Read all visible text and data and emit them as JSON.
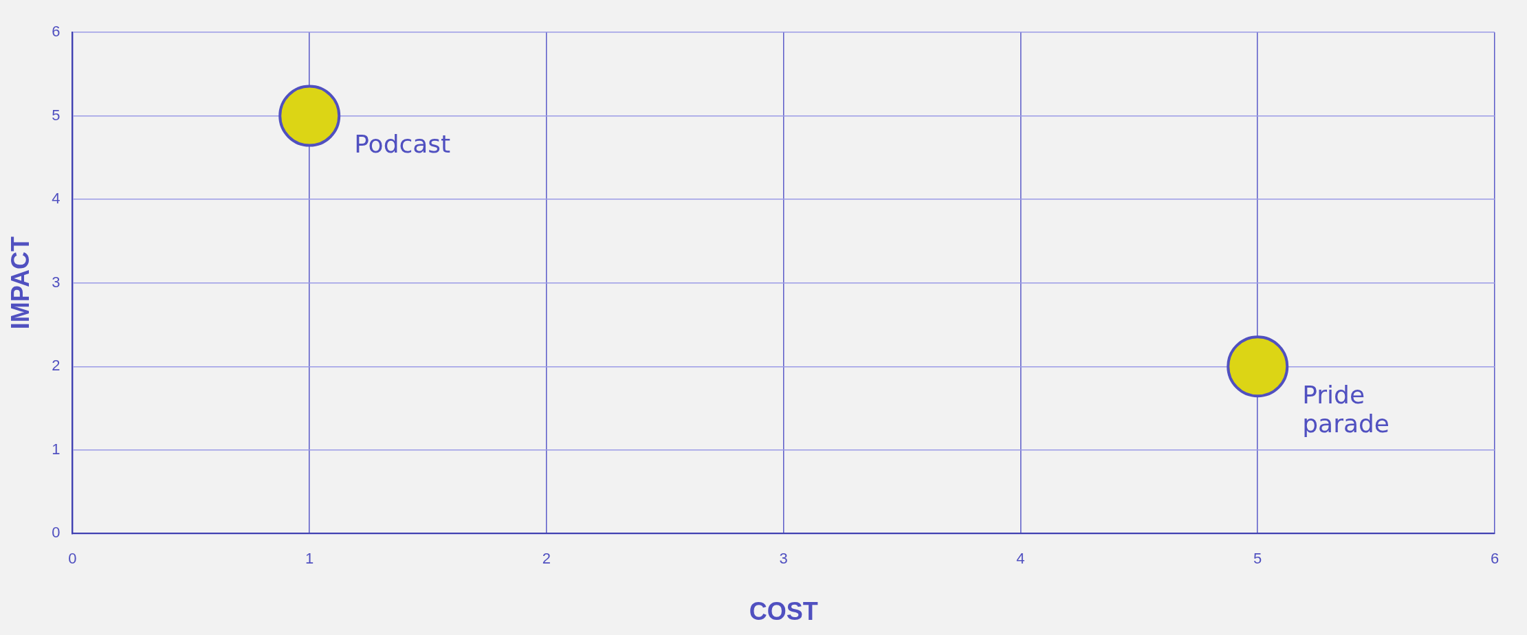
{
  "chart_data": {
    "type": "scatter",
    "xlabel": "COST",
    "ylabel": "IMPACT",
    "x": [
      1,
      5
    ],
    "values": [
      5,
      2
    ],
    "color": "#dcd515",
    "marker": "circle",
    "xlim": [
      0,
      6
    ],
    "ylim": [
      0,
      6
    ],
    "xticks": [
      0,
      1,
      2,
      3,
      4,
      5,
      6
    ],
    "yticks": [
      0,
      1,
      2,
      3,
      4,
      5,
      6
    ],
    "grid": true,
    "legend": false,
    "annotations": [
      {
        "text": "Podcast",
        "x": 1,
        "y": 5
      },
      {
        "text": "Pride parade",
        "x": 5,
        "y": 2
      }
    ]
  }
}
